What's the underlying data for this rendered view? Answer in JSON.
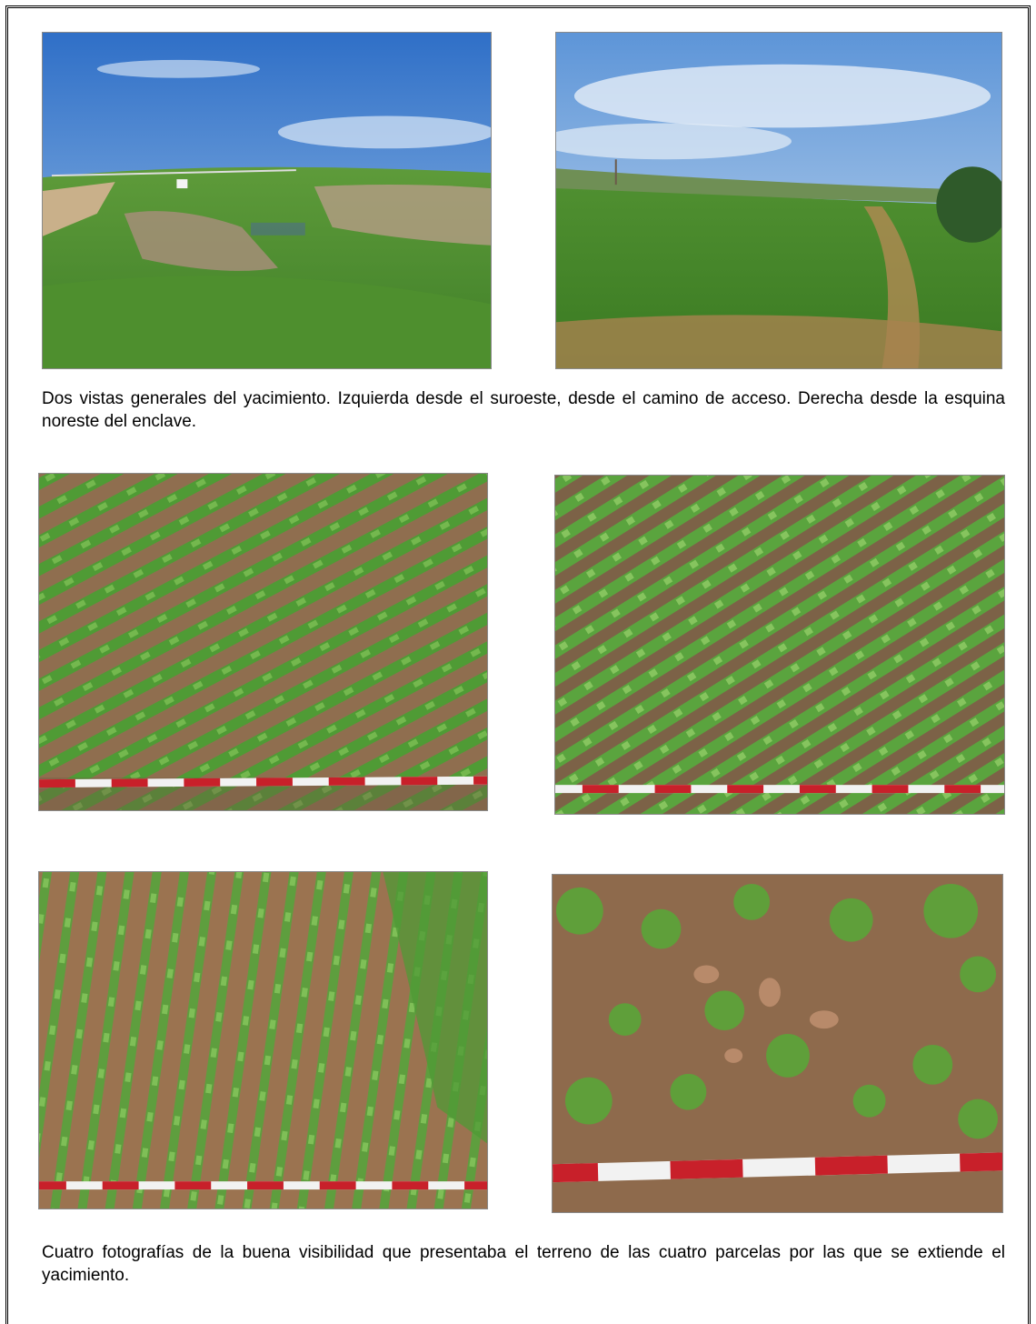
{
  "captions": {
    "top": "Dos vistas generales del yacimiento. Izquierda desde el suroeste, desde el camino de acceso. Derecha desde la esquina noreste del enclave.",
    "bottom": "Cuatro fotografías de la buena visibilidad que presentaba el terreno de las cuatro parcelas por las que se extiende el yacimiento."
  },
  "colors": {
    "sky": "#3f7fd0",
    "grass": "#4f9a35",
    "soil": "#9a7552",
    "scale_red": "#c8202a",
    "scale_white": "#f2f2f2"
  }
}
